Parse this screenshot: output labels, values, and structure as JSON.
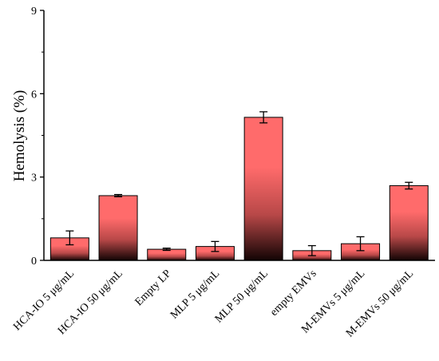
{
  "chart_data": {
    "type": "bar",
    "title": "",
    "xlabel": "",
    "ylabel": "Hemolysis (%)",
    "ylim": [
      0,
      9
    ],
    "yticks": [
      0,
      3,
      6,
      9
    ],
    "grid": false,
    "categories": [
      "HCA-IO 5 μg/mL",
      "HCA-IO 50 μg/mL",
      "Empty LP",
      "MLP 5 μg/mL",
      "MLP 50 μg/mL",
      "empty EMVs",
      "M-EMVs 5 μg/mL",
      "M-EMVs 50 μg/mL"
    ],
    "values": [
      0.81,
      2.33,
      0.4,
      0.5,
      5.15,
      0.35,
      0.6,
      2.69
    ],
    "errors": [
      0.25,
      0.04,
      0.04,
      0.18,
      0.2,
      0.18,
      0.25,
      0.12
    ],
    "colors": {
      "bar_top": "#ff6b6b",
      "bar_mid": "#b84848",
      "bar_bottom": "#120404"
    }
  }
}
